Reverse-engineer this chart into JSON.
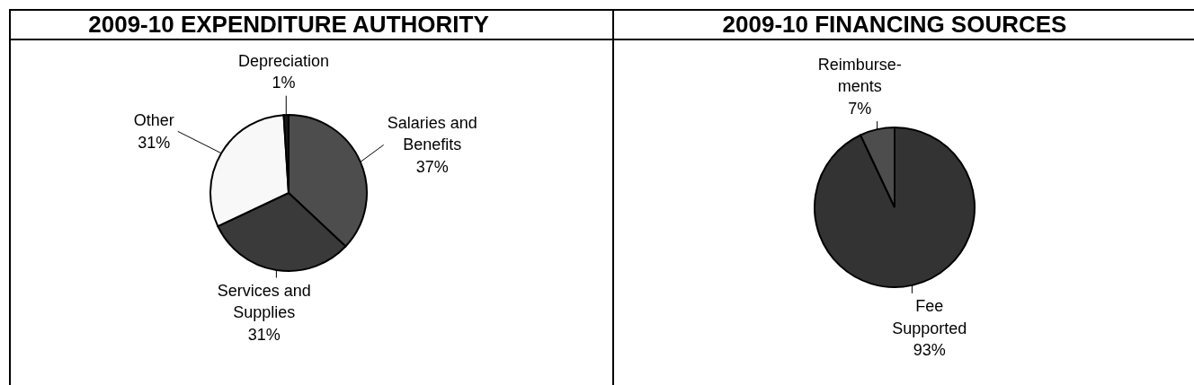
{
  "chart_data": [
    {
      "type": "pie",
      "title": "2009-10 EXPENDITURE AUTHORITY",
      "categories": [
        "Salaries and Benefits",
        "Services and Supplies",
        "Other",
        "Depreciation"
      ],
      "values": [
        37,
        31,
        31,
        1
      ],
      "colors": [
        "#4d4d4d",
        "#3a3a3a",
        "#f8f8f8",
        "#1a1a1a"
      ],
      "value_labels": [
        "37%",
        "31%",
        "31%",
        "1%"
      ]
    },
    {
      "type": "pie",
      "title": "2009-10 FINANCING SOURCES",
      "categories": [
        "Fee Supported",
        "Reimburse-ments"
      ],
      "values": [
        93,
        7
      ],
      "colors": [
        "#333333",
        "#4d4d4d"
      ],
      "value_labels": [
        "93%",
        "7%"
      ]
    }
  ]
}
